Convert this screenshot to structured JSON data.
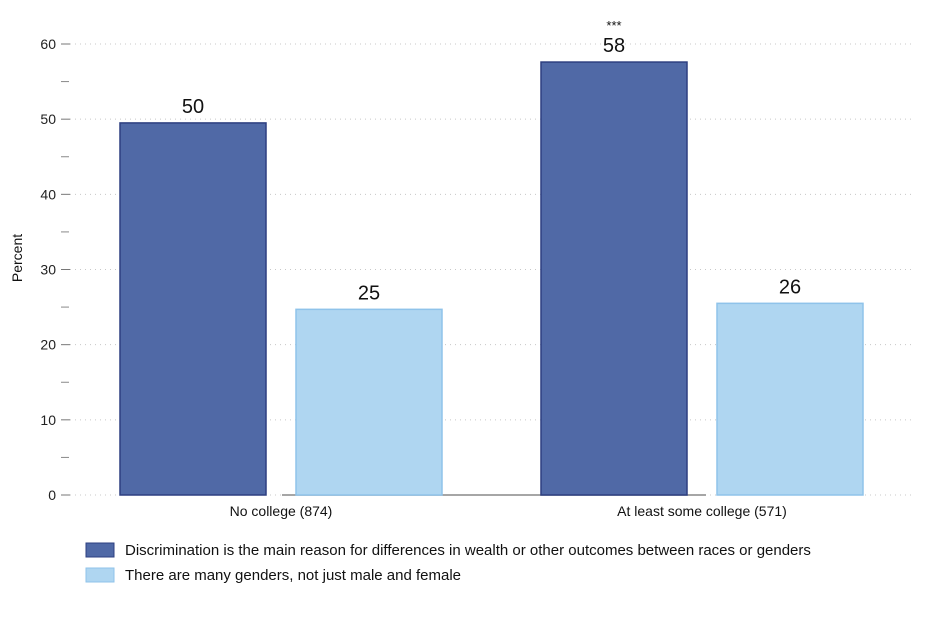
{
  "chart_data": {
    "type": "bar",
    "title": "",
    "xlabel": "",
    "ylabel": "Percent",
    "ylim": [
      0,
      60
    ],
    "yticks": [
      0,
      10,
      20,
      30,
      40,
      50,
      60
    ],
    "grid": true,
    "legend_position": "bottom",
    "categories": [
      "No college (874)",
      "At least some college (571)"
    ],
    "series": [
      {
        "name": "Discrimination is the main reason for differences in wealth or other outcomes between races or genders",
        "values": [
          49.5,
          57.6
        ],
        "labels": [
          "50",
          "58"
        ],
        "significance": [
          "",
          "***"
        ],
        "color": "#5069a6",
        "stroke": "#2d3f80"
      },
      {
        "name": "There are many genders, not just male and female",
        "values": [
          24.7,
          25.5
        ],
        "labels": [
          "25",
          "26"
        ],
        "significance": [
          "",
          ""
        ],
        "color": "#afd6f1",
        "stroke": "#8fc3ea"
      }
    ]
  }
}
